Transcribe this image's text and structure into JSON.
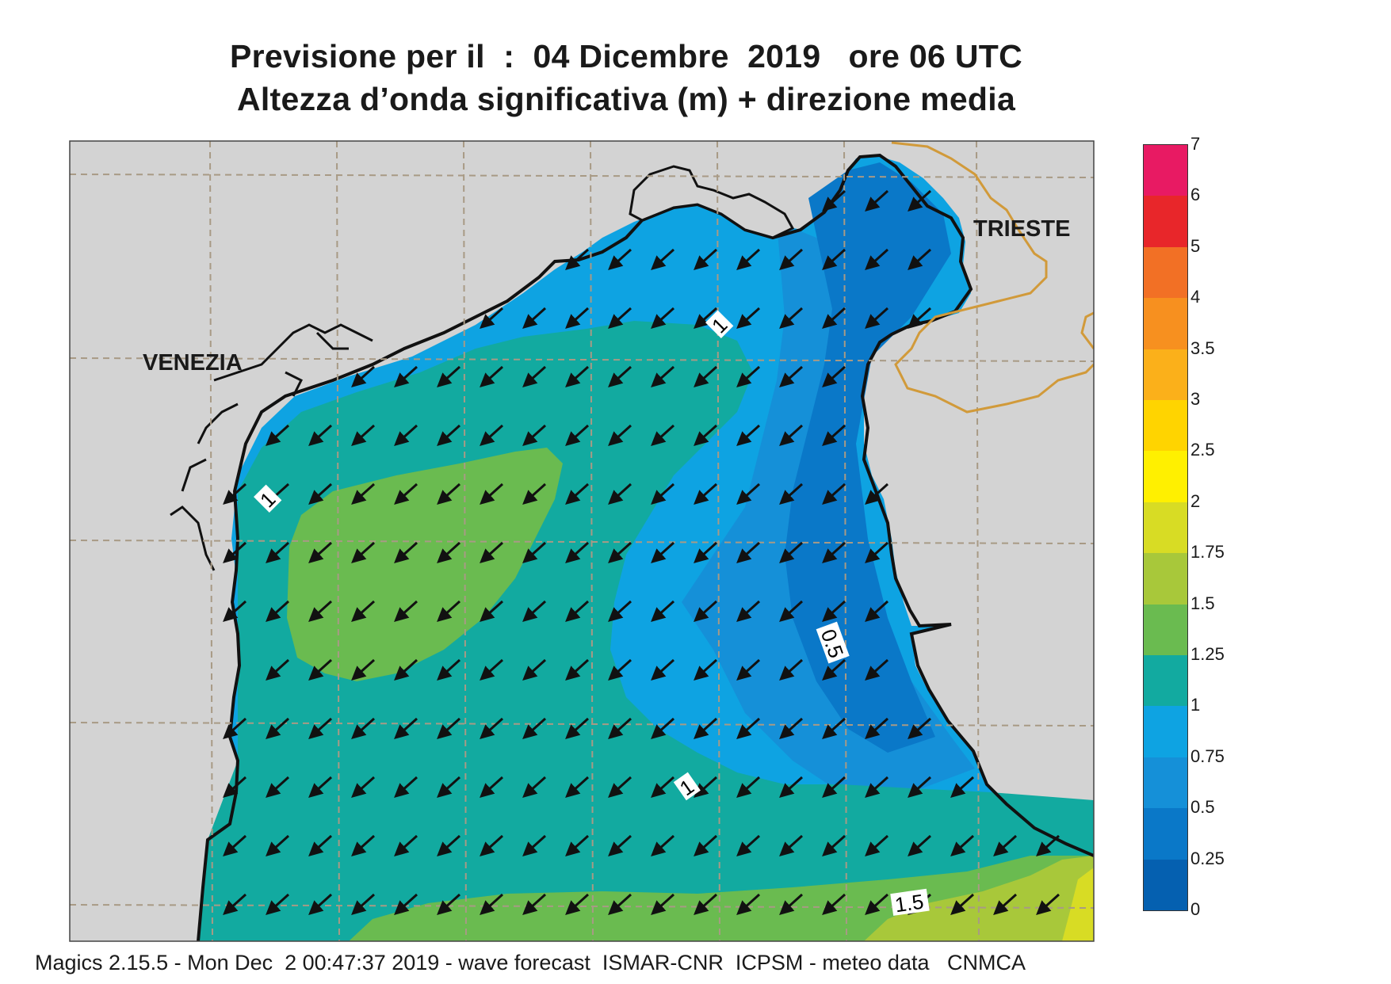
{
  "header": {
    "line1": "Previsione per il  :  04 Dicembre  2019   ore 06 UTC",
    "line2": "Altezza d’onda significativa (m) + direzione media"
  },
  "map": {
    "cities": [
      {
        "name": "VENEZIA"
      },
      {
        "name": "TRIESTE"
      }
    ],
    "contour_labels": [
      "1",
      "1",
      "0.5",
      "1",
      "1.5"
    ],
    "arrow_direction": "south-west",
    "colors": {
      "land": "#d3d3d3",
      "coast": "#111111",
      "grid": "#a89a85",
      "border": "#d19a3a",
      "arrow": "#111111"
    }
  },
  "colorbar": {
    "levels": [
      "0",
      "0.25",
      "0.5",
      "0.75",
      "1",
      "1.25",
      "1.5",
      "1.75",
      "2",
      "2.5",
      "3",
      "3.5",
      "4",
      "5",
      "6",
      "7"
    ],
    "colors": [
      "#0560b0",
      "#0a78c8",
      "#1590d8",
      "#0ea3e2",
      "#12aaa0",
      "#6abb50",
      "#a8c83a",
      "#d8dc24",
      "#fff000",
      "#ffd400",
      "#fbb01a",
      "#f7901f",
      "#f27025",
      "#e8262a",
      "#e81a63"
    ]
  },
  "footer": {
    "text": "Magics 2.15.5 - Mon Dec  2 00:47:37 2019 - wave forecast  ISMAR-CNR  ICPSM - meteo data   CNMCA"
  }
}
